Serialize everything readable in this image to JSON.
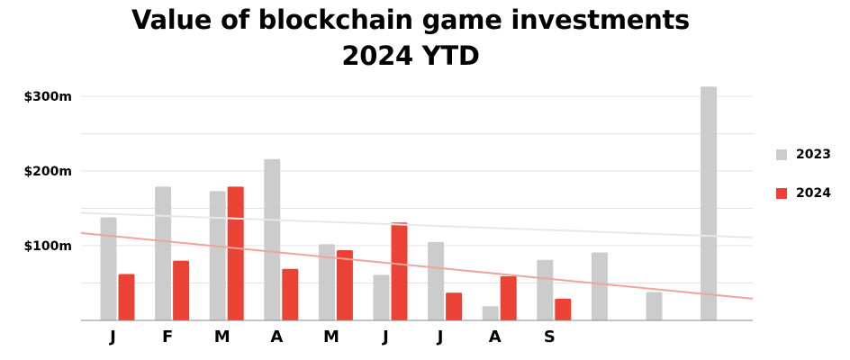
{
  "title_line1": "Value of blockchain game investments",
  "title_line2": "2024 YTD",
  "colors": {
    "2023": "#cccccc",
    "2024": "#ea4335",
    "trend2023": "#e8e8e8",
    "trend2024": "#f0a49b",
    "grid": "#e3e3e3",
    "axis": "#888888"
  },
  "chart_data": {
    "type": "bar",
    "title": "Value of blockchain game investments 2024 YTD",
    "xlabel": "",
    "ylabel": "",
    "ylim": [
      0,
      300
    ],
    "y_ticks": [
      {
        "value": 100,
        "label": "$100m"
      },
      {
        "value": 200,
        "label": "$200m"
      },
      {
        "value": 300,
        "label": "$300m"
      }
    ],
    "category_labels": [
      "J",
      "F",
      "M",
      "A",
      "M",
      "J",
      "J",
      "A",
      "S",
      "",
      "",
      ""
    ],
    "series": [
      {
        "name": "2023",
        "values": [
          138,
          179,
          173,
          216,
          102,
          61,
          105,
          19,
          81,
          91,
          38,
          313
        ]
      },
      {
        "name": "2024",
        "values": [
          62,
          80,
          179,
          69,
          94,
          131,
          37,
          59,
          29,
          null,
          null,
          null
        ]
      }
    ],
    "trendlines": [
      {
        "series": "2023",
        "start_value": 144,
        "end_value": 111
      },
      {
        "series": "2024",
        "start_value": 117,
        "end_value": 29
      }
    ],
    "grid": true,
    "legend_position": "right"
  }
}
